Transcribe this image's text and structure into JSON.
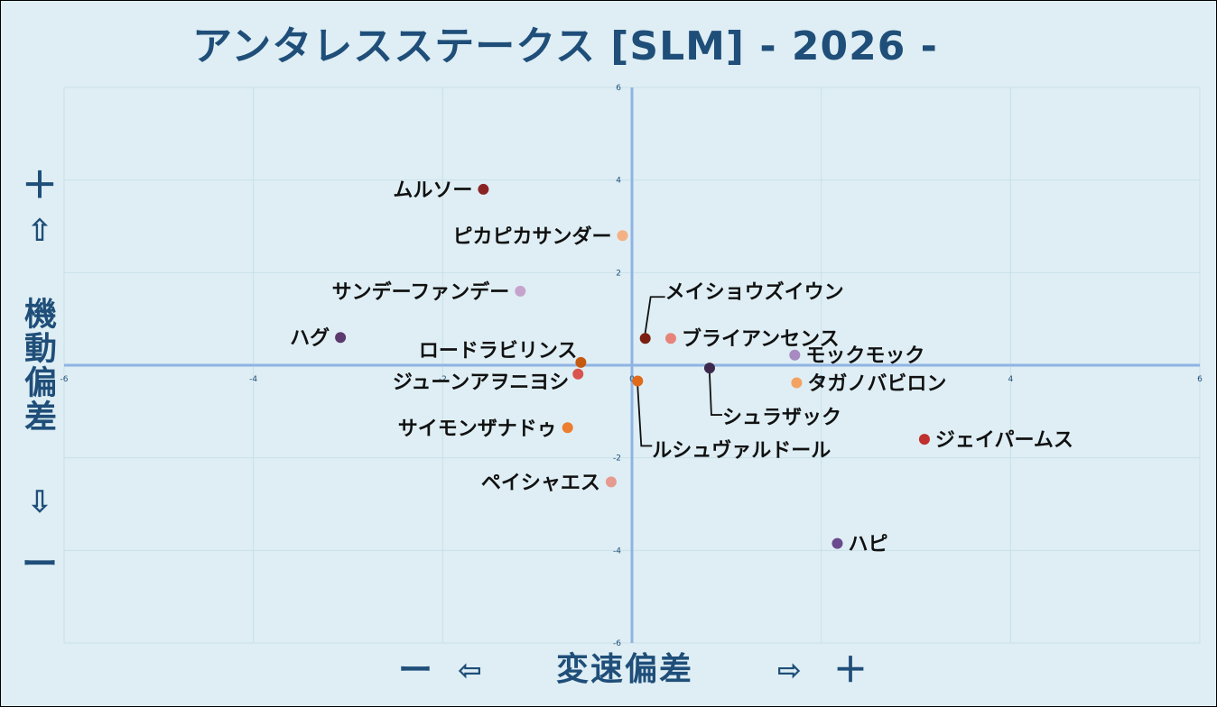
{
  "title": "アンタレスステークス [SLM]  - 2026 -",
  "y_axis": {
    "plus": "＋",
    "up_arrow": "⇧",
    "label": "機動偏差",
    "down_arrow": "⇩",
    "minus": "ー"
  },
  "x_axis": {
    "minus": "ー",
    "left_arrow": "⇦",
    "label": "変速偏差",
    "right_arrow": "⇨",
    "plus": "＋"
  },
  "chart_data": {
    "type": "scatter",
    "title": "アンタレスステークス [SLM]  - 2026 -",
    "xlabel": "変速偏差",
    "ylabel": "機動偏差",
    "xlim": [
      -6,
      6
    ],
    "ylim": [
      -6,
      6
    ],
    "x_ticks": [
      -6,
      -4,
      -2,
      0,
      2,
      4,
      6
    ],
    "y_ticks": [
      -6,
      -4,
      -2,
      0,
      2,
      4,
      6
    ],
    "x_tick_labels": [
      "-6",
      "-4",
      "-2",
      "0",
      "2",
      "4",
      "6"
    ],
    "y_tick_labels": [
      "-6",
      "-4",
      "-2",
      "0",
      "2",
      "4",
      "6"
    ],
    "grid": true,
    "points": [
      {
        "name": "ムルソー",
        "x": -1.57,
        "y": 3.8,
        "color": "#8b2323",
        "label_side": "left"
      },
      {
        "name": "ピカピカサンダー",
        "x": -0.1,
        "y": 2.8,
        "color": "#f4b183",
        "label_side": "left"
      },
      {
        "name": "サンデーファンデー",
        "x": -1.18,
        "y": 1.6,
        "color": "#c5a3cd",
        "label_side": "left"
      },
      {
        "name": "ハグ",
        "x": -3.08,
        "y": 0.6,
        "color": "#5b3a6e",
        "label_side": "left"
      },
      {
        "name": "ロードラビリンス",
        "x": -0.54,
        "y": 0.06,
        "color": "#c55a11",
        "label_side": "left"
      },
      {
        "name": "ジューンアヲニヨシ",
        "x": -0.57,
        "y": -0.19,
        "color": "#d9534f",
        "label_side": "left"
      },
      {
        "name": "サイモンザナドゥ",
        "x": -0.68,
        "y": -1.35,
        "color": "#ed7d31",
        "label_side": "left"
      },
      {
        "name": "ペイシャエス",
        "x": -0.22,
        "y": -2.52,
        "color": "#e79a8f",
        "label_side": "left"
      },
      {
        "name": "メイショウズイウン",
        "x": 0.14,
        "y": 0.58,
        "color": "#7b1f12",
        "label_side": "leader"
      },
      {
        "name": "ブライアンセンス",
        "x": 0.41,
        "y": 0.58,
        "color": "#e8837a",
        "label_side": "right"
      },
      {
        "name": "モックモック",
        "x": 1.72,
        "y": 0.22,
        "color": "#a68ac0",
        "label_side": "right"
      },
      {
        "name": "シュラザック",
        "x": 0.82,
        "y": -0.06,
        "color": "#3b2a4e",
        "label_side": "leader"
      },
      {
        "name": "タガノバビロン",
        "x": 1.74,
        "y": -0.38,
        "color": "#f4a261",
        "label_side": "right"
      },
      {
        "name": "ルシュヴァルドール",
        "x": 0.06,
        "y": -0.34,
        "color": "#e0691a",
        "label_side": "leader"
      },
      {
        "name": "ジェイパームス",
        "x": 3.09,
        "y": -1.6,
        "color": "#c0302d",
        "label_side": "right"
      },
      {
        "name": "ハピ",
        "x": 2.17,
        "y": -3.85,
        "color": "#6a4a8f",
        "label_side": "right"
      }
    ]
  }
}
